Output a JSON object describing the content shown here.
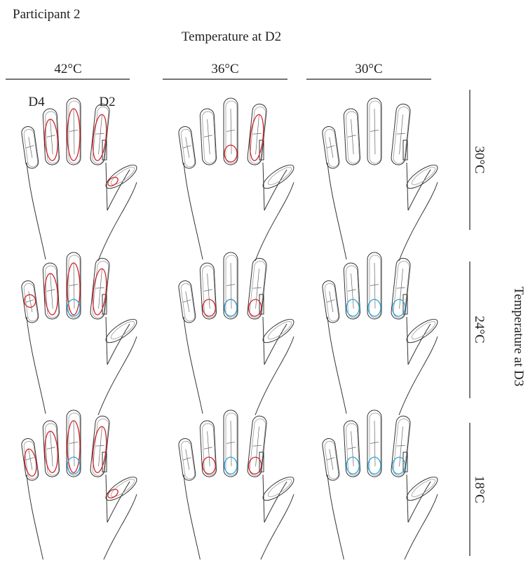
{
  "header": {
    "title": "Participant 2"
  },
  "column_axis": {
    "title": "Temperature at D2",
    "labels": [
      "42°C",
      "36°C",
      "30°C"
    ]
  },
  "row_axis": {
    "title": "Temperature at D3",
    "labels": [
      "30°C",
      "24°C",
      "18°C"
    ]
  },
  "finger_labels": [
    "D4",
    "D2"
  ]
}
